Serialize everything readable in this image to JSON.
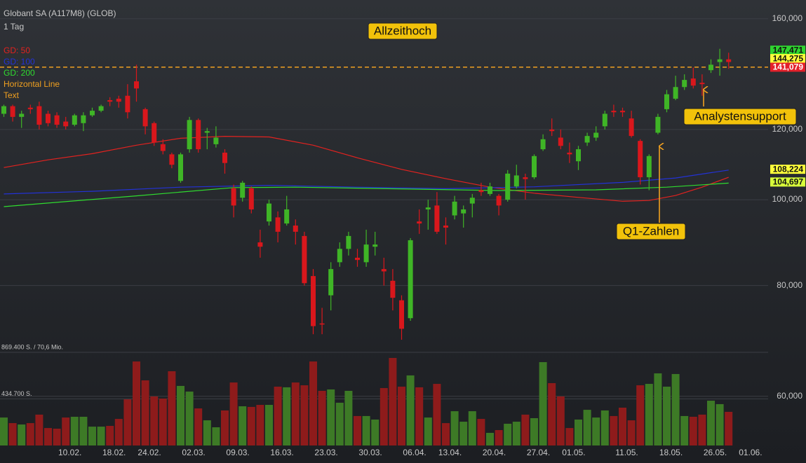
{
  "chart_data": {
    "type": "candlestick",
    "title": "Globant SA (A117M8) (GLOB)",
    "subtitle": "1 Tag",
    "log_scale": true,
    "grid": true,
    "ylim": [
      52800,
      168000
    ],
    "yticks": [
      {
        "value": 60000,
        "label": "60,000"
      },
      {
        "value": 80000,
        "label": "80,000"
      },
      {
        "value": 100000,
        "label": "100,000"
      },
      {
        "value": 120000,
        "label": "120,000"
      },
      {
        "value": 160000,
        "label": "160,000"
      }
    ],
    "up_color": "#3fb526",
    "down_color": "#d9171c",
    "volume_up_color": "#3d7a26",
    "volume_down_color": "#8e1b1b",
    "categories": [
      null,
      null,
      null,
      null,
      null,
      null,
      null,
      "10.02.",
      null,
      null,
      null,
      null,
      "18.02.",
      null,
      null,
      null,
      "24.02.",
      null,
      null,
      null,
      null,
      "02.03.",
      null,
      null,
      null,
      null,
      "09.03.",
      null,
      null,
      null,
      null,
      "16.03.",
      null,
      null,
      null,
      null,
      "23.03.",
      null,
      null,
      null,
      null,
      "30.03.",
      null,
      null,
      null,
      null,
      "06.04.",
      null,
      null,
      null,
      "13.04.",
      null,
      null,
      null,
      null,
      "20.04.",
      null,
      null,
      null,
      null,
      "27.04.",
      null,
      null,
      null,
      "01.05.",
      null,
      null,
      null,
      null,
      null,
      "11.05.",
      null,
      null,
      null,
      null,
      "18.05.",
      null,
      null,
      null,
      null,
      "26.05.",
      null,
      null,
      null,
      "01.06."
    ],
    "open": [
      125000,
      127500,
      124000,
      127000,
      127500,
      125000,
      124500,
      122500,
      121500,
      122000,
      124500,
      126000,
      129500,
      130000,
      131000,
      136000,
      126500,
      122000,
      115500,
      112500,
      105000,
      114000,
      123000,
      119000,
      115500,
      113000,
      103000,
      100500,
      103000,
      89500,
      94500,
      95500,
      94000,
      93500,
      91000,
      82000,
      72500,
      78000,
      85000,
      88000,
      86000,
      85000,
      88500,
      83500,
      81000,
      77000,
      73500,
      94500,
      97500,
      98500,
      93500,
      96000,
      96500,
      99000,
      102500,
      101500,
      101000,
      100000,
      103500,
      106000,
      106000,
      114000,
      120000,
      117500,
      113000,
      110500,
      116000,
      117500,
      121000,
      126000,
      126000,
      123500,
      116500,
      106000,
      119000,
      126500,
      130000,
      134000,
      137000,
      135500,
      140000,
      143000,
      144000,
      null,
      null
    ],
    "high": [
      128000,
      128000,
      126000,
      128000,
      129000,
      126000,
      125500,
      124000,
      125000,
      125500,
      127000,
      128000,
      130500,
      131000,
      135000,
      142000,
      127000,
      122500,
      117000,
      113000,
      113000,
      124000,
      123500,
      120500,
      121000,
      114000,
      104000,
      105000,
      103500,
      92500,
      100000,
      97000,
      101000,
      95000,
      92000,
      83500,
      75500,
      85000,
      89500,
      92000,
      88000,
      92500,
      92000,
      86000,
      83500,
      78000,
      90500,
      97500,
      100000,
      102000,
      95500,
      101000,
      98500,
      101500,
      104500,
      104500,
      101500,
      108000,
      109500,
      107000,
      112500,
      118500,
      123500,
      120000,
      116000,
      115000,
      119000,
      121000,
      126000,
      128000,
      127000,
      126000,
      117000,
      112500,
      125000,
      133000,
      138000,
      138500,
      141000,
      138500,
      144000,
      148000,
      146500,
      null,
      null
    ],
    "low": [
      124000,
      122500,
      120500,
      125000,
      120000,
      121000,
      120500,
      120000,
      121000,
      119500,
      124000,
      125500,
      127500,
      127000,
      123500,
      129000,
      118500,
      115000,
      112500,
      108500,
      104500,
      113000,
      113000,
      114000,
      114500,
      107000,
      95500,
      99500,
      96500,
      86000,
      93500,
      89500,
      93500,
      89000,
      80000,
      70500,
      70500,
      75000,
      84000,
      86500,
      84000,
      84000,
      86500,
      80000,
      75000,
      69500,
      73000,
      91500,
      92500,
      91500,
      89000,
      95000,
      93000,
      95500,
      101000,
      101000,
      96000,
      99500,
      103000,
      100000,
      105500,
      113500,
      118000,
      114000,
      110000,
      108000,
      115000,
      116500,
      120000,
      124000,
      124000,
      117500,
      104000,
      102500,
      118500,
      125500,
      129500,
      133000,
      133500,
      131000,
      139000,
      138000,
      140500,
      null,
      null
    ],
    "close": [
      127500,
      124000,
      125000,
      126500,
      121500,
      122000,
      121500,
      121000,
      124500,
      124500,
      126000,
      127500,
      129000,
      129000,
      125500,
      133500,
      121000,
      116000,
      113500,
      109500,
      112500,
      123000,
      114000,
      119500,
      117500,
      110000,
      98500,
      104500,
      97500,
      88500,
      99000,
      92000,
      97500,
      92000,
      80500,
      72000,
      72300,
      83500,
      88000,
      91000,
      85500,
      89000,
      89000,
      83000,
      77500,
      71500,
      90000,
      94000,
      98000,
      92000,
      93000,
      99500,
      97500,
      100500,
      102000,
      103500,
      98500,
      107000,
      106500,
      105500,
      112000,
      117000,
      119500,
      115000,
      112500,
      114000,
      118000,
      119000,
      125000,
      125500,
      125500,
      118000,
      106000,
      112000,
      124000,
      131500,
      134000,
      136500,
      134500,
      135000,
      142000,
      144000,
      143000,
      null,
      null
    ],
    "volume_ylim": [
      0,
      869400
    ],
    "volume_yticks": [
      {
        "value": 434700,
        "label": "434.700 S."
      },
      {
        "value": 869400,
        "label": "869.400 S. / 70,6 Mio."
      }
    ],
    "volumes": [
      261000,
      209000,
      196000,
      209000,
      288000,
      163000,
      157000,
      261000,
      268000,
      268000,
      176000,
      176000,
      183000,
      248000,
      431000,
      784000,
      608000,
      458000,
      438000,
      693000,
      556000,
      503000,
      346000,
      235000,
      170000,
      327000,
      588000,
      366000,
      360000,
      379000,
      379000,
      549000,
      543000,
      588000,
      562000,
      784000,
      510000,
      523000,
      399000,
      510000,
      275000,
      275000,
      242000,
      536000,
      817000,
      549000,
      654000,
      543000,
      261000,
      575000,
      209000,
      320000,
      222000,
      320000,
      248000,
      118000,
      144000,
      203000,
      222000,
      288000,
      255000,
      778000,
      582000,
      458000,
      163000,
      242000,
      333000,
      261000,
      327000,
      275000,
      353000,
      235000,
      562000,
      575000,
      673000,
      549000,
      667000,
      275000,
      268000,
      288000,
      418000,
      386000,
      314000,
      null,
      null
    ],
    "series": [
      {
        "name": "GD: 50",
        "color": "#e3221f",
        "x": [
          0,
          5,
          10,
          15,
          20,
          25,
          30,
          35,
          40,
          45,
          50,
          55,
          60,
          65,
          70,
          73,
          76,
          79,
          82
        ],
        "values": [
          108700,
          110900,
          112700,
          115200,
          117300,
          117900,
          117700,
          115200,
          111500,
          108200,
          105600,
          103300,
          101700,
          100600,
          99600,
          99800,
          101100,
          103300,
          106000
        ]
      },
      {
        "name": "GD: 100",
        "color": "#2332d6",
        "x": [
          0,
          10,
          20,
          30,
          40,
          50,
          60,
          70,
          76,
          82
        ],
        "values": [
          101500,
          102200,
          103300,
          103800,
          103300,
          102900,
          103400,
          104600,
          105800,
          108000
        ]
      },
      {
        "name": "GD: 200",
        "color": "#2fdc2f",
        "x": [
          0,
          15,
          26,
          33,
          56,
          67,
          75,
          82
        ],
        "values": [
          98200,
          101000,
          103200,
          103300,
          102400,
          102600,
          103300,
          104400
        ]
      }
    ],
    "horizontal_line": {
      "name": "Horizontal Line",
      "value": 141100,
      "color": "#f0a020"
    },
    "annotations_name": "Text",
    "annotations_color": "#f0a020",
    "annotations": [
      "Allzeithoch",
      "Analystensupport",
      "Q1-Zahlen"
    ],
    "price_tags": {
      "values": [
        147471,
        144275,
        141079,
        108224,
        104697
      ],
      "value_labels": [
        "147,471",
        "144,275",
        "141,079",
        "108,224",
        "104,697"
      ],
      "colors": [
        "#2fd42f",
        "#ffff3a",
        "#e3202a",
        "#ffff3a",
        "#d8ff3a"
      ]
    }
  }
}
